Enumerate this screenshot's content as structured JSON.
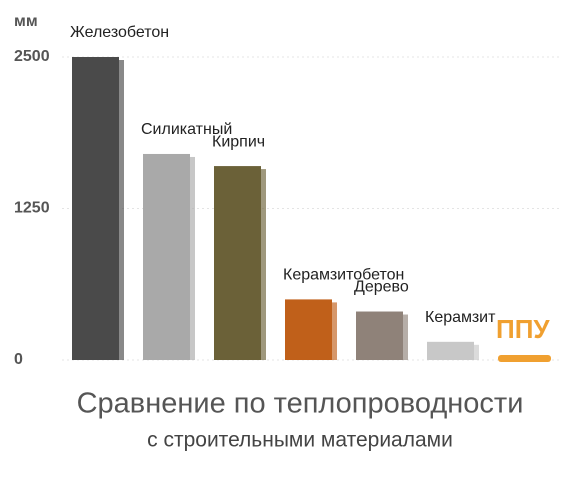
{
  "chart_data": {
    "type": "bar",
    "y_label": "мм",
    "title": "Сравнение по теплопроводности",
    "subtitle": "с строительными материалами",
    "categories": [
      "Железобетон",
      "Силикатный",
      "Кирпич",
      "Керамзитобетон",
      "Дерево",
      "Керамзит",
      "ППУ"
    ],
    "values": [
      2500,
      1700,
      1600,
      500,
      400,
      150,
      25
    ],
    "colors": [
      "#4a4a4a",
      "#a9a9a9",
      "#6b6138",
      "#c0601a",
      "#8f8279",
      "#c8c8c8",
      "#f0a030"
    ],
    "ylim": [
      0,
      2500
    ],
    "yticks": [
      0,
      1250,
      2500
    ],
    "grid": true
  }
}
